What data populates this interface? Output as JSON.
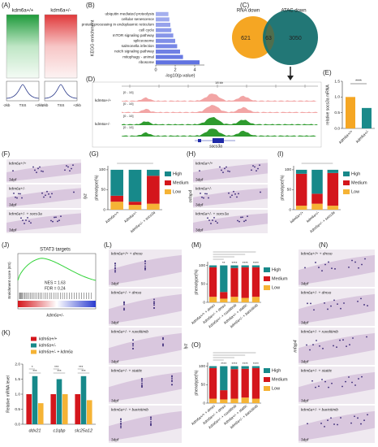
{
  "panel_labels": [
    "(A)",
    "(B)",
    "(C)",
    "(D)",
    "(E)",
    "(F)",
    "(G)",
    "(H)",
    "(I)",
    "(J)",
    "(K)",
    "(L)",
    "(M)",
    "(N)",
    "(O)"
  ],
  "heatmap": {
    "samples": [
      "kdm6a+/+",
      "kdm6a+/-"
    ],
    "axis": [
      "-2kb",
      "TSS",
      "+2kb"
    ]
  },
  "venn": {
    "left": "RNA down",
    "right": "ATAC down",
    "counts": [
      621,
      63,
      3050
    ]
  },
  "tracks": {
    "samples": [
      "kdm6a+/+",
      "kdm6a+/-"
    ],
    "range": "[0 - 10]",
    "gene": "socs3a",
    "scale": "18 kb"
  },
  "stage": "3dpf",
  "images_F": {
    "marker": "lyz",
    "labels": [
      "kdm6a+/+",
      "kdm6a+/-",
      "kdm6a+/- + socs3a"
    ]
  },
  "images_H": {
    "marker": "mfap4",
    "labels": [
      "kdm6a+/+",
      "kdm6a+/-",
      "kdm6a+/- + socs3a"
    ]
  },
  "images_L": {
    "marker": "lyz",
    "labels": [
      "kdm6a+/+ + dmso",
      "kdm6a+/- + dmso",
      "kdm6a+/- + ruxolitinib",
      "kdm6a+/- + stattic",
      "kdm6a+/- + baricitinib"
    ]
  },
  "images_N": {
    "marker": "mfap4",
    "labels": [
      "kdm6a+/+ + dmso",
      "kdm6a+/- + dmso",
      "kdm6a+/- + ruxolitinib",
      "kdm6a+/- + stattic",
      "kdm6a+/- + baricitinib"
    ]
  },
  "gsea": {
    "title": "STAT3 targets",
    "ylabel": "Enrichment score (ES)",
    "nes": "NES = 1.63",
    "fdr": "FDR = 0.24",
    "xlabel": "kdm6a+/-"
  },
  "charts": {
    "kegg": {
      "type": "hbar",
      "ylabel": "KEGG enrichment",
      "xlabel": "-log10(p-value)",
      "color": "#5a6de0",
      "categories": [
        "ubiquitin mediated proteolysis",
        "cellular senescence",
        "protein processing in endoplasmic reticulum",
        "cell cycle",
        "mTOR signaling pathway",
        "spliceosome",
        "salmonella infection",
        "notch signaling pathway",
        "mitophagy - animal",
        "ribosome"
      ],
      "values": [
        1.3,
        1.4,
        1.5,
        1.6,
        1.8,
        2.0,
        2.2,
        2.5,
        2.8,
        4.5
      ],
      "xlim": [
        0,
        5
      ],
      "xticks": [
        0,
        2,
        4
      ]
    },
    "E": {
      "type": "bar",
      "ylabel": "relative socs3a mRNA",
      "categories": [
        "kdm6a+/+",
        "kdm6a+/-"
      ],
      "values": [
        1.0,
        0.65
      ],
      "colors": [
        "#f5a623",
        "#1b8a8a"
      ],
      "ylim": [
        0,
        1.5
      ],
      "yticks": [
        {
          "value": 0,
          "label": "0.0"
        },
        {
          "value": 0.5,
          "label": "0.5"
        },
        {
          "value": 1,
          "label": "1.0"
        },
        {
          "value": 1.5,
          "label": "1.5"
        }
      ],
      "annotation": "****"
    },
    "G": {
      "type": "stacked",
      "ylabel": "phenotype(%)",
      "categories": [
        "kdm6a+/+",
        "kdm6a+/-",
        "kdm6a+/- + socs3a"
      ],
      "ylim": [
        0,
        110
      ],
      "yticks": [
        0,
        50,
        100
      ],
      "series": [
        {
          "name": "Low",
          "color": "#f5b335",
          "values": [
            20,
            12,
            15
          ]
        },
        {
          "name": "Medium",
          "color": "#d4161c",
          "values": [
            15,
            8,
            70
          ]
        },
        {
          "name": "High",
          "color": "#17898a",
          "values": [
            65,
            80,
            15
          ]
        }
      ]
    },
    "I": {
      "type": "stacked",
      "ylabel": "phenotype(%)",
      "categories": [
        "kdm6a+/+",
        "kdm6a+/-",
        "kdm6a+/- + socs3a"
      ],
      "ylim": [
        0,
        110
      ],
      "yticks": [
        0,
        50,
        100
      ],
      "series": [
        {
          "name": "Low",
          "color": "#f5b335",
          "values": [
            10,
            15,
            10
          ]
        },
        {
          "name": "Medium",
          "color": "#d4161c",
          "values": [
            80,
            25,
            82
          ]
        },
        {
          "name": "High",
          "color": "#17898a",
          "values": [
            10,
            60,
            8
          ]
        }
      ]
    },
    "M": {
      "type": "stacked",
      "ylabel": "phenotype(%)",
      "categories": [
        "kdm6a+/+ + dmso",
        "kdm6a+/- + dmso",
        "kdm6a+/- + ruxolitinib",
        "kdm6a+/- + stattic",
        "kdm6a+/- + baricitinib"
      ],
      "ylim": [
        0,
        110
      ],
      "yticks": [
        0,
        50,
        100
      ],
      "series": [
        {
          "name": "Low",
          "color": "#f5b335",
          "values": [
            15,
            10,
            15,
            12,
            15
          ]
        },
        {
          "name": "Medium",
          "color": "#d4161c",
          "values": [
            80,
            18,
            78,
            83,
            80
          ]
        },
        {
          "name": "High",
          "color": "#17898a",
          "values": [
            5,
            72,
            7,
            5,
            5
          ]
        }
      ],
      "annotations": [
        "**",
        "****",
        "****",
        "****"
      ]
    },
    "O": {
      "type": "stacked",
      "ylabel": "phenotype(%)",
      "categories": [
        "kdm6a+/+ + dmso",
        "kdm6a+/- + dmso",
        "kdm6a+/- + ruxolitinib",
        "kdm6a+/- + stattic",
        "kdm6a+/- + baricitinib"
      ],
      "ylim": [
        0,
        110
      ],
      "yticks": [
        0,
        50,
        100
      ],
      "series": [
        {
          "name": "Low",
          "color": "#f5b335",
          "values": [
            12,
            10,
            12,
            15,
            12
          ]
        },
        {
          "name": "Medium",
          "color": "#d4161c",
          "values": [
            83,
            25,
            80,
            78,
            83
          ]
        },
        {
          "name": "High",
          "color": "#17898a",
          "values": [
            5,
            65,
            8,
            7,
            5
          ]
        }
      ],
      "annotations": [
        "****",
        "****",
        "****",
        "****"
      ]
    },
    "K": {
      "type": "grouped",
      "ylabel": "Relative mRNA level",
      "categories": [
        "ddx21",
        "c1qbp",
        "slc25a12"
      ],
      "ylim": [
        0,
        2
      ],
      "yticks": [
        {
          "value": 0,
          "label": "0.0"
        },
        {
          "value": 0.5,
          "label": "0.5"
        },
        {
          "value": 1,
          "label": "1.0"
        },
        {
          "value": 1.5,
          "label": "1.5"
        },
        {
          "value": 2,
          "label": "2.0"
        }
      ],
      "series": [
        {
          "name": "kdm6a+/+",
          "color": "#d4161c",
          "values": [
            1.0,
            1.0,
            1.0
          ]
        },
        {
          "name": "kdm6a+/-",
          "color": "#17898a",
          "values": [
            1.6,
            1.5,
            1.6
          ]
        },
        {
          "name": "kdm6a+/- + kdm6a",
          "color": "#f5b335",
          "values": [
            0.7,
            1.0,
            0.8
          ]
        }
      ],
      "annotations": [
        "*",
        "***",
        "***",
        "***",
        "***",
        "***"
      ]
    }
  }
}
